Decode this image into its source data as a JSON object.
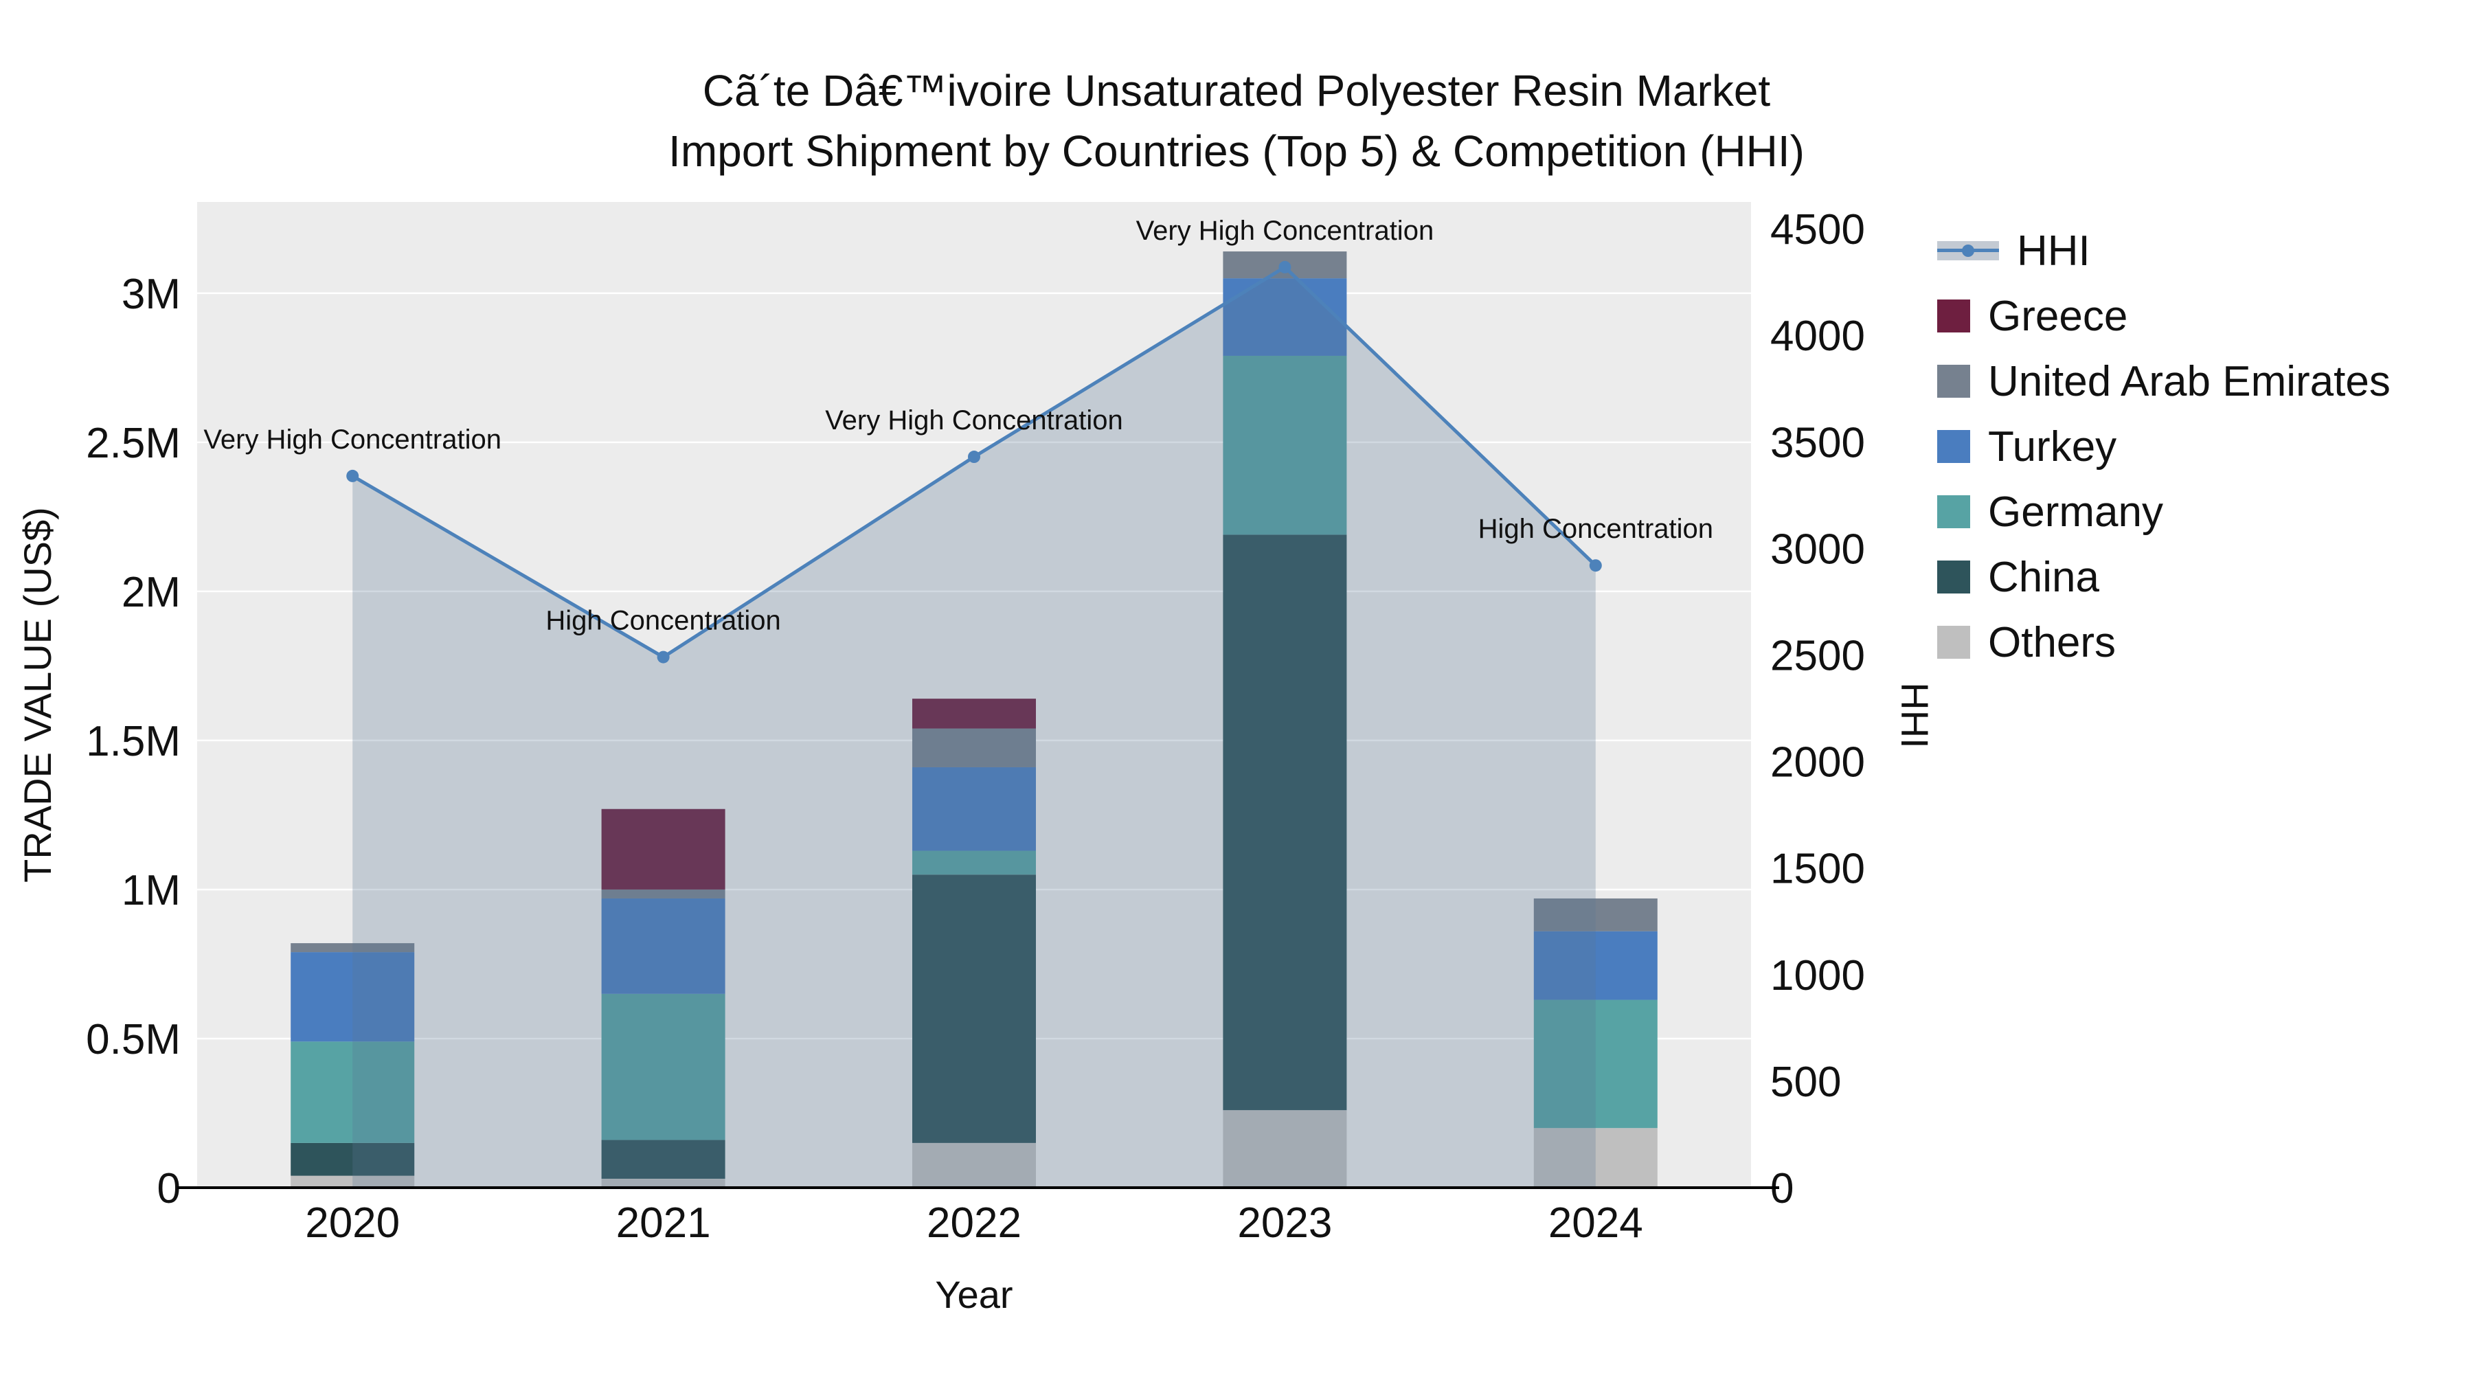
{
  "chart_data": {
    "type": "bar",
    "subtype": "stacked-bars-with-line-overlay",
    "title_line1": "Cã´te Dâ€™ivoire Unsaturated Polyester Resin Market",
    "title_line2": "Import Shipment by Countries (Top 5) & Competition (HHI)",
    "xlabel": "Year",
    "ylabel_left": "TRADE VALUE (US$)",
    "ylabel_right": "HHI",
    "categories": [
      "2020",
      "2021",
      "2022",
      "2023",
      "2024"
    ],
    "series": [
      {
        "name": "Others",
        "color": "#bfbfbf",
        "values": [
          40000,
          30000,
          150000,
          260000,
          200000
        ]
      },
      {
        "name": "China",
        "color": "#2e545b",
        "values": [
          110000,
          130000,
          900000,
          1930000,
          0
        ]
      },
      {
        "name": "Germany",
        "color": "#57a3a4",
        "values": [
          340000,
          490000,
          80000,
          600000,
          430000
        ]
      },
      {
        "name": "Turkey",
        "color": "#4a7dbf",
        "values": [
          300000,
          320000,
          280000,
          260000,
          230000
        ]
      },
      {
        "name": "United Arab Emirates",
        "color": "#76818f",
        "values": [
          30000,
          30000,
          130000,
          90000,
          110000
        ]
      },
      {
        "name": "Greece",
        "color": "#6e1f40",
        "values": [
          0,
          270000,
          100000,
          0,
          0
        ]
      }
    ],
    "line_series": {
      "name": "HHI",
      "color": "#4d82ba",
      "area_fill": "#5b7694",
      "area_opacity": 0.28,
      "values": [
        3340,
        2490,
        3430,
        4320,
        2920
      ]
    },
    "annotations": [
      "Very High Concentration",
      "High Concentration",
      "Very High Concentration",
      "Very High Concentration",
      "High Concentration"
    ],
    "left_axis": {
      "range": [
        0,
        3306000
      ],
      "ticks": [
        {
          "v": 0,
          "label": "0"
        },
        {
          "v": 500000,
          "label": "0.5M"
        },
        {
          "v": 1000000,
          "label": "1M"
        },
        {
          "v": 1500000,
          "label": "1.5M"
        },
        {
          "v": 2000000,
          "label": "2M"
        },
        {
          "v": 2500000,
          "label": "2.5M"
        },
        {
          "v": 3000000,
          "label": "3M"
        }
      ]
    },
    "right_axis": {
      "range": [
        0,
        4626
      ],
      "ticks": [
        0,
        500,
        1000,
        1500,
        2000,
        2500,
        3000,
        3500,
        4000,
        4500
      ]
    },
    "legend_order": [
      "HHI",
      "Greece",
      "United Arab Emirates",
      "Turkey",
      "Germany",
      "China",
      "Others"
    ],
    "legend_band_color": "#c3cad3",
    "plot_bg": "#ececec",
    "grid_color": "#ffffff",
    "axis_line_color": "#000000",
    "text_color": "#111111"
  }
}
